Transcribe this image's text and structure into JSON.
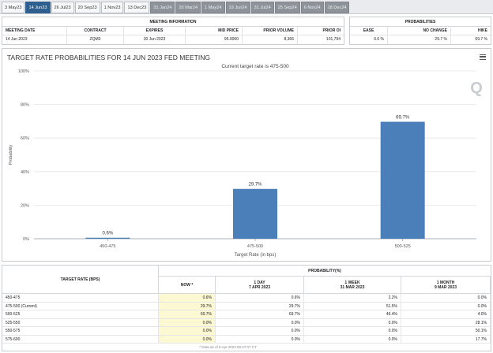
{
  "tabs": [
    {
      "label": "3 May23",
      "state": "normal"
    },
    {
      "label": "14 Jun23",
      "state": "active"
    },
    {
      "label": "26 Jul23",
      "state": "normal"
    },
    {
      "label": "20 Sep23",
      "state": "normal"
    },
    {
      "label": "1 Nov23",
      "state": "normal"
    },
    {
      "label": "13 Dec23",
      "state": "normal"
    },
    {
      "label": "31 Jan24",
      "state": "future"
    },
    {
      "label": "20 Mar24",
      "state": "future"
    },
    {
      "label": "1 May24",
      "state": "future"
    },
    {
      "label": "19 Jun24",
      "state": "future"
    },
    {
      "label": "31 Jul24",
      "state": "future"
    },
    {
      "label": "25 Sep24",
      "state": "future"
    },
    {
      "label": "6 Nov24",
      "state": "future"
    },
    {
      "label": "18 Dec24",
      "state": "future"
    }
  ],
  "meeting_info": {
    "title": "MEETING INFORMATION",
    "headers": [
      "MEETING DATE",
      "CONTRACT",
      "EXPIRES",
      "MID PRICE",
      "PRIOR VOLUME",
      "PRIOR OI"
    ],
    "values": [
      "14 Jun 2023",
      "ZQM3",
      "30 Jun 2023",
      "95.0000",
      "8,366",
      "101,794"
    ]
  },
  "probabilities": {
    "title": "PROBABILITIES",
    "headers": [
      "EASE",
      "NO CHANGE",
      "HIKE"
    ],
    "values": [
      "0.6 %",
      "29.7 %",
      "69.7 %"
    ]
  },
  "chart": {
    "title": "TARGET RATE PROBABILITIES FOR 14 JUN 2023 FED MEETING",
    "subtitle": "Current target rate is 475-500",
    "watermark": "Q"
  },
  "chart_data": {
    "type": "bar",
    "title": "TARGET RATE PROBABILITIES FOR 14 JUN 2023 FED MEETING",
    "subtitle": "Current target rate is 475-500",
    "categories": [
      "450-475",
      "475-500",
      "500-525"
    ],
    "values": [
      0.6,
      29.7,
      69.7
    ],
    "data_labels": [
      "0.6%",
      "29.7%",
      "69.7%"
    ],
    "xlabel": "Target Rate (in bps)",
    "ylabel": "Probability",
    "ylim": [
      0,
      100
    ],
    "yticks": [
      "0%",
      "20%",
      "40%",
      "60%",
      "80%",
      "100%"
    ],
    "bar_color": "#4a7fba",
    "grid": true
  },
  "rate_table": {
    "col_header": "TARGET RATE (BPS)",
    "prob_header": "PROBABILITY(%)",
    "subheaders": [
      {
        "line1": "NOW *",
        "line2": ""
      },
      {
        "line1": "1 DAY",
        "line2": "7 APR 2023"
      },
      {
        "line1": "1 WEEK",
        "line2": "31 MAR 2023"
      },
      {
        "line1": "1 MONTH",
        "line2": "9 MAR 2023"
      }
    ],
    "rows": [
      [
        "450-475",
        "0.6%",
        "0.6%",
        "2.2%",
        "0.0%"
      ],
      [
        "475-500 (Current)",
        "29.7%",
        "29.7%",
        "51.5%",
        "0.0%"
      ],
      [
        "500-525",
        "69.7%",
        "69.7%",
        "46.4%",
        "4.0%"
      ],
      [
        "525-550",
        "0.0%",
        "0.0%",
        "0.0%",
        "28.1%"
      ],
      [
        "550-575",
        "0.0%",
        "0.0%",
        "0.0%",
        "50.1%"
      ],
      [
        "575-600",
        "0.0%",
        "0.0%",
        "0.0%",
        "17.7%"
      ]
    ],
    "footnote": "* Data as of 8 Apr 2023 00:47:07 CT"
  }
}
